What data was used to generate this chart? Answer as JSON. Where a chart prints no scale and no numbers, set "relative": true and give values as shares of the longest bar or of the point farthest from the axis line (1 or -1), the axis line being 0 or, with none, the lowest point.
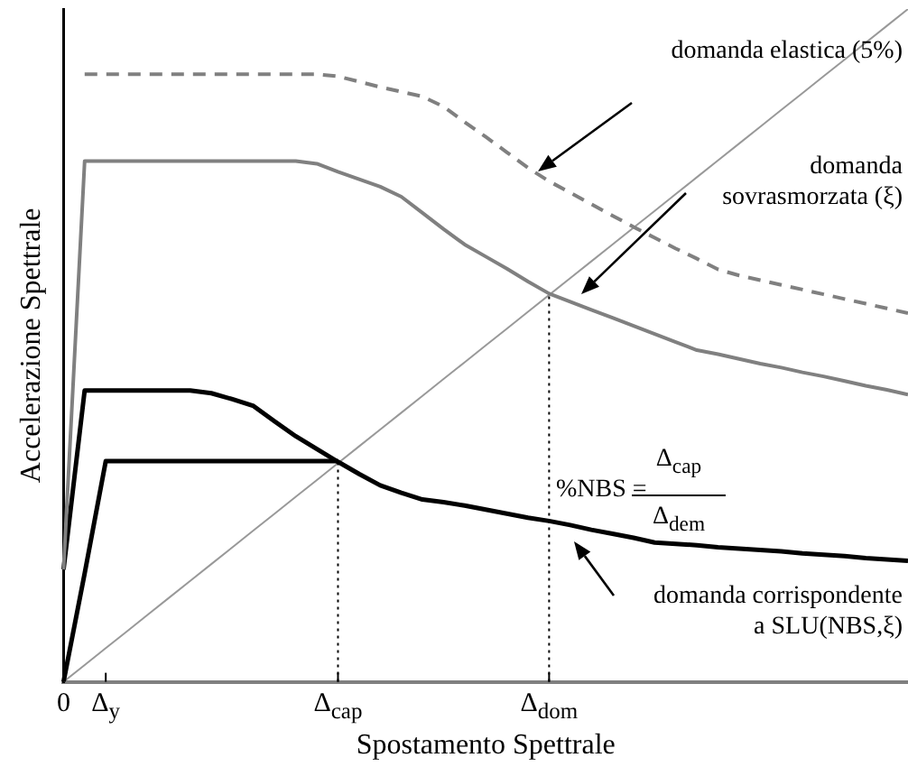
{
  "chart_data": {
    "type": "line",
    "relative": true,
    "xlabel": "Spostamento Spettrale",
    "ylabel": "Accelerazione Spettrale",
    "grid": false,
    "legend": false,
    "marker": "none",
    "categories": [
      "0",
      null,
      "Δ$_{y}$",
      null,
      null,
      null,
      null,
      null,
      null,
      null,
      null,
      null,
      null,
      "Δ$_{cap}$",
      null,
      null,
      null,
      null,
      null,
      null,
      null,
      null,
      null,
      "Δ$_{dom}$",
      null,
      null,
      null,
      null,
      null,
      null,
      null,
      null,
      null,
      null,
      null,
      null,
      null,
      null,
      null,
      null,
      null
    ],
    "series": [
      {
        "color": "#808080",
        "line_style": "dashed",
        "values": [
          null,
          0.903,
          0.903,
          0.903,
          0.903,
          0.903,
          0.903,
          0.903,
          0.903,
          0.903,
          0.903,
          0.903,
          0.903,
          0.9,
          0.892,
          0.884,
          0.877,
          0.87,
          0.855,
          0.832,
          0.81,
          0.787,
          0.764,
          0.744,
          0.727,
          0.71,
          0.693,
          0.676,
          0.66,
          0.644,
          0.629,
          0.613,
          0.604,
          0.597,
          0.59,
          0.583,
          0.576,
          0.569,
          0.562,
          0.555,
          0.548
        ]
      },
      {
        "color": "#808080",
        "line_style": "solid",
        "values": [
          0.167,
          0.774,
          0.774,
          0.774,
          0.774,
          0.774,
          0.774,
          0.774,
          0.774,
          0.774,
          0.774,
          0.774,
          0.77,
          0.758,
          0.747,
          0.736,
          0.721,
          0.697,
          0.673,
          0.65,
          0.632,
          0.614,
          0.595,
          0.577,
          0.565,
          0.553,
          0.541,
          0.529,
          0.517,
          0.505,
          0.493,
          0.487,
          0.48,
          0.473,
          0.467,
          0.46,
          0.454,
          0.447,
          0.44,
          0.434,
          0.427
        ]
      },
      {
        "color": "#000000",
        "line_style": "solid",
        "values": [
          0.167,
          0.433,
          0.433,
          0.433,
          0.433,
          0.433,
          0.433,
          0.429,
          0.42,
          0.41,
          0.387,
          0.365,
          0.346,
          0.327,
          0.309,
          0.292,
          0.281,
          0.271,
          0.267,
          0.262,
          0.256,
          0.25,
          0.244,
          0.239,
          0.233,
          0.226,
          0.22,
          0.214,
          0.207,
          0.205,
          0.203,
          0.2,
          0.198,
          0.196,
          0.194,
          0.191,
          0.189,
          0.187,
          0.184,
          0.182,
          0.18
        ]
      },
      {
        "color": "#000000",
        "line_style": "solid",
        "values": [
          0,
          0.161,
          0.328,
          0.328,
          0.328,
          0.328,
          0.328,
          0.328,
          0.328,
          0.328,
          0.328,
          0.328,
          0.328,
          0.328,
          null,
          null,
          null,
          null,
          null,
          null,
          null,
          null,
          null,
          null,
          null,
          null,
          null,
          null,
          null,
          null,
          null,
          null,
          null,
          null,
          null,
          null,
          null,
          null,
          null,
          null,
          null
        ]
      },
      {
        "color": "#999999",
        "line_style": "solid",
        "values": [
          0,
          0.025,
          0.05,
          0.075,
          0.1,
          0.125,
          0.15,
          0.175,
          0.2,
          0.225,
          0.25,
          0.275,
          0.3,
          0.325,
          0.35,
          0.375,
          0.4,
          0.425,
          0.45,
          0.475,
          0.5,
          0.525,
          0.55,
          0.575,
          0.6,
          0.625,
          0.65,
          0.675,
          0.7,
          0.725,
          0.75,
          0.775,
          0.8,
          0.825,
          0.85,
          0.875,
          0.9,
          0.925,
          0.95,
          0.975,
          1
        ]
      }
    ],
    "ref_lines": [
      {
        "axis": "x",
        "value": "Δ$_{cap}$",
        "color": "#000000",
        "line_style": "dotted"
      },
      {
        "axis": "x",
        "value": "Δ$_{dom}$",
        "color": "#000000",
        "line_style": "dotted"
      }
    ],
    "annotations": [
      "domanda elastica (5%)",
      "domanda\nsovrasmorzata (ξ)",
      "domanda corrispondente\na SLU(NBS,ξ)",
      "%NBS =",
      "Δ$_{cap}$",
      "Δ$_{dem}$"
    ]
  }
}
